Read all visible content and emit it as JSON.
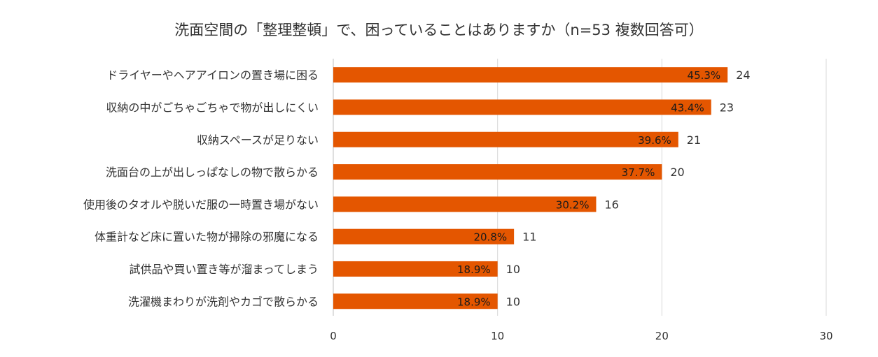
{
  "chart_data": {
    "type": "bar",
    "orientation": "horizontal",
    "title": "洗面空間の「整理整頓」で、困っていることはありますか（n=53 複数回答可）",
    "categories": [
      "ドライヤーやヘアアイロンの置き場に困る",
      "収納の中がごちゃごちゃで物が出しにくい",
      "収納スペースが足りない",
      "洗面台の上が出しっぱなしの物で散らかる",
      "使用後のタオルや脱いだ服の一時置き場がない",
      "体重計など床に置いた物が掃除の邪魔になる",
      "試供品や買い置き等が溜まってしまう",
      "洗濯機まわりが洗剤やカゴで散らかる"
    ],
    "values": [
      24,
      23,
      21,
      20,
      16,
      11,
      10,
      10
    ],
    "value_labels": [
      "24",
      "23",
      "21",
      "20",
      "16",
      "11",
      "10",
      "10"
    ],
    "percent_labels": [
      "45.3%",
      "43.4%",
      "39.6%",
      "37.7%",
      "30.2%",
      "20.8%",
      "18.9%",
      "18.9%"
    ],
    "xlim": [
      0,
      30
    ],
    "xticks": [
      "0",
      "10",
      "20",
      "30"
    ],
    "xlabel": "",
    "ylabel": "",
    "grid": true,
    "bar_color": "#e45600"
  }
}
